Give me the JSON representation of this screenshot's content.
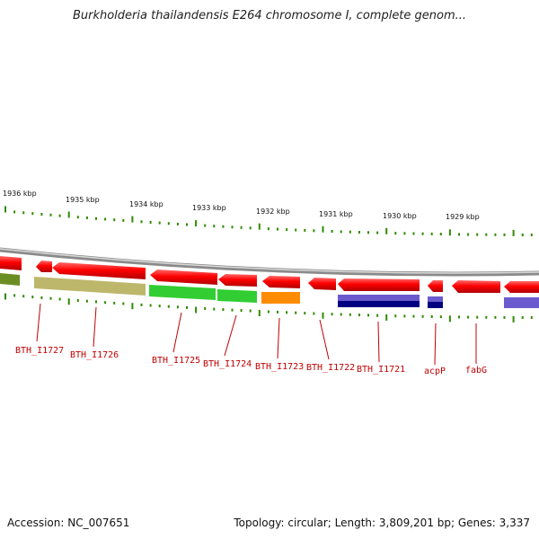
{
  "title": "Burkholderia thailandensis E264 chromosome I, complete genom...",
  "footer": {
    "accession": "Accession: NC_007651",
    "summary": "Topology: circular; Length: 3,809,201 bp; Genes: 3,337"
  },
  "colors": {
    "background": "#ffffff",
    "backbone": "#8c8c8c",
    "tick": "#2e8b00",
    "gene_forward_arrow": "#ff0000",
    "label": "#c00000"
  },
  "scale_labels": [
    "1936 kbp",
    "1935 kbp",
    "1934 kbp",
    "1933 kbp",
    "1932 kbp",
    "1931 kbp",
    "1930 kbp",
    "1929 kbp"
  ],
  "genes": [
    {
      "label": "BTH_I1727",
      "cog_color": "#00e5ee"
    },
    {
      "label": "BTH_I1726",
      "cog_color": "#bdb76b"
    },
    {
      "label": "BTH_I1725",
      "cog_color": "#32cd32"
    },
    {
      "label": "BTH_I1724",
      "cog_color": "#32cd32"
    },
    {
      "label": "BTH_I1723",
      "cog_color": "#ff8c00"
    },
    {
      "label": "BTH_I1722",
      "cog_color": ""
    },
    {
      "label": "BTH_I1721",
      "cog_color": "#000080"
    },
    {
      "label": "acpP",
      "cog_color": "#000080"
    },
    {
      "label": "fabG",
      "cog_color": "#6a5acd"
    }
  ]
}
